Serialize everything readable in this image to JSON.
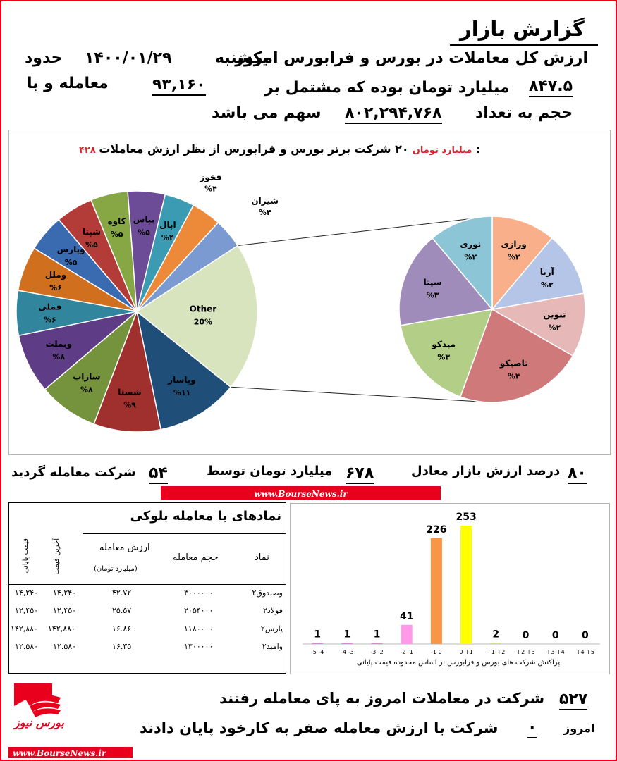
{
  "header": {
    "title": "گزارش بازار",
    "line1": "ارزش کل معاملات در بورس و فرابورس امروز",
    "day": "یکشنبه",
    "date": "۱۴۰۰/۰۱/۲۹",
    "about": "حدود",
    "line2a": "میلیارد تومان بوده که مشتمل بر",
    "value_total": "۸۴۷.۵",
    "trades_count": "۹۳,۱۶۰",
    "trades_suffix": "معامله و با",
    "line3a": "حجم به تعداد",
    "volume": "۸۰۲,۲۹۴,۷۶۸",
    "line3b": "سهم می باشد"
  },
  "pie_section": {
    "title": "۲۰ شرکت برتر بورس و فرابورس از نظر ارزش معاملات :",
    "title_value": "۴۲۸ میلیارد تومان",
    "title_value_color": "#d9232d"
  },
  "chart_data": [
    {
      "type": "pie",
      "title": "۲۰ شرکت برتر بورس و فرابورس از نظر ارزش معاملات :",
      "subtitle": "۴۲۸ میلیارد تومان",
      "slices": [
        {
          "label": "Other",
          "value_label": "20%",
          "value": 20,
          "color": "#d7e4bd"
        },
        {
          "label": "وپاسار",
          "value_label": "%۱۱",
          "value": 11,
          "color": "#1f4e79"
        },
        {
          "label": "شستا",
          "value_label": "%۹",
          "value": 9,
          "color": "#a0302d"
        },
        {
          "label": "ساراب",
          "value_label": "%۸",
          "value": 8,
          "color": "#75923c"
        },
        {
          "label": "وبملت",
          "value_label": "%۸",
          "value": 8,
          "color": "#5f3d86"
        },
        {
          "label": "فملی",
          "value_label": "%۶",
          "value": 6,
          "color": "#31859c"
        },
        {
          "label": "وملل",
          "value_label": "%۶",
          "value": 6,
          "color": "#d0701f"
        },
        {
          "label": "وپارس",
          "value_label": "%۵",
          "value": 5,
          "color": "#3a6ab0"
        },
        {
          "label": "شپنا",
          "value_label": "%۵",
          "value": 5,
          "color": "#b33b38"
        },
        {
          "label": "کاوه",
          "value_label": "%۵",
          "value": 5,
          "color": "#86a744"
        },
        {
          "label": "بپاس",
          "value_label": "%۵",
          "value": 5,
          "color": "#6c4c96"
        },
        {
          "label": "اپال",
          "value_label": "%۴",
          "value": 4,
          "color": "#3a9bb3"
        },
        {
          "label": "فخوز",
          "value_label": "%۴",
          "value": 4,
          "color": "#ec8a3a"
        },
        {
          "label": "شیران",
          "value_label": "%۴",
          "value": 4,
          "color": "#7b9ad2"
        }
      ]
    },
    {
      "type": "pie",
      "title": "",
      "slices": [
        {
          "label": "ورازی",
          "value_label": "%۲",
          "value": 2,
          "color": "#f9b08a"
        },
        {
          "label": "آریا",
          "value_label": "%۲",
          "value": 2,
          "color": "#b4c5e7"
        },
        {
          "label": "تنوین",
          "value_label": "%۲",
          "value": 2,
          "color": "#e6b9b8"
        },
        {
          "label": "تاصیکو",
          "value_label": "%۴",
          "value": 4,
          "color": "#d0797a"
        },
        {
          "label": "میدکو",
          "value_label": "%۳",
          "value": 3,
          "color": "#b3cf87"
        },
        {
          "label": "سیتا",
          "value_label": "%۳",
          "value": 3,
          "color": "#a08cbb"
        },
        {
          "label": "نوری",
          "value_label": "%۲",
          "value": 2,
          "color": "#8cc5d6"
        }
      ]
    },
    {
      "type": "bar",
      "title": "",
      "xlabel": "پراکنش شرکت های بورس و فرابورس بر اساس محدوده قیمت پایانی",
      "categories": [
        "-5 -4",
        "-4 -3",
        "-3 -2",
        "-2 -1",
        "-1 0",
        "0 +1",
        "+1 +2",
        "+2 +3",
        "+3 +4",
        "+4 +5"
      ],
      "values": [
        1,
        1,
        1,
        41,
        226,
        253,
        2,
        0,
        0,
        0
      ],
      "value_labels": [
        "1",
        "1",
        "1",
        "41",
        "226",
        "253",
        "2",
        "0",
        "0",
        "0"
      ],
      "colors": [
        "#f07bd3",
        "#f07bd3",
        "#f07bd3",
        "#ff99e8",
        "#f79646",
        "#ffff00",
        "#ccee44",
        "#99cc33",
        "#669933",
        "#336600"
      ],
      "ylim": [
        0,
        253
      ]
    }
  ],
  "mid": {
    "pct_value": "۸۰",
    "pct_text": "درصد ارزش بازار معادل",
    "avg_value": "۶۷۸",
    "avg_text": "میلیارد تومان توسط",
    "co_value": "۵۴",
    "co_text": "شرکت معامله گردید",
    "website": "www.BourseNews.ir"
  },
  "block_table": {
    "title": "نمادهای با معامله بلوکی",
    "headers": {
      "symbol": "نماد",
      "volume": "حجم معامله",
      "value": "ارزش معامله",
      "value_unit": "(میلیارد تومان)",
      "last": "آخرین قیمت",
      "final": "قیمت پایانی"
    },
    "rows": [
      {
        "symbol": "وصندوق۲",
        "volume": "۳۰۰۰۰۰۰",
        "value": "۴۲.۷۲",
        "last": "۱۴,۲۴۰",
        "final": "۱۴,۲۴۰"
      },
      {
        "symbol": "فولاد۲",
        "volume": "۲۰۵۴۰۰۰",
        "value": "۲۵.۵۷",
        "last": "۱۲,۴۵۰",
        "final": "۱۲,۴۵۰"
      },
      {
        "symbol": "پارس۲",
        "volume": "۱۱۸۰۰۰۰",
        "value": "۱۶.۸۶",
        "last": "۱۴۲,۸۸۰",
        "final": "۱۴۲,۸۸۰"
      },
      {
        "symbol": "وامید۲",
        "volume": "۱۳۰۰۰۰۰",
        "value": "۱۶.۳۵",
        "last": "۱۲.۵۸۰",
        "final": "۱۲.۵۸۰"
      }
    ]
  },
  "footer": {
    "traded_count": "۵۲۷",
    "traded_text": "شرکت در معاملات امروز به پای معامله رفتند",
    "today": "امروز",
    "zero_count": "۰",
    "zero_text": "شرکت با ارزش معامله صفر به کارخود پایان دادند",
    "logo_text": "بورس نیوز",
    "website": "www.BourseNews.ir"
  }
}
